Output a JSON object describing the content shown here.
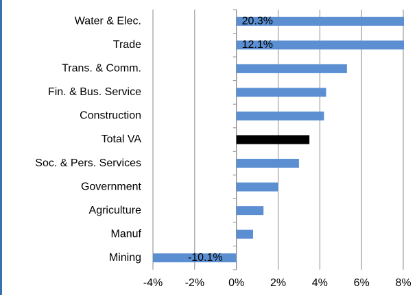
{
  "chart_data": {
    "type": "hbar",
    "categories": [
      "Water & Elec.",
      "Trade",
      "Trans. & Comm.",
      "Fin. & Bus. Service",
      "Construction",
      "Total VA",
      "Soc. & Pers. Services",
      "Government",
      "Agriculture",
      "Manuf",
      "Mining"
    ],
    "values": [
      20.3,
      12.1,
      5.3,
      4.3,
      4.2,
      3.5,
      3.0,
      2.0,
      1.3,
      0.8,
      -10.1
    ],
    "value_labels": [
      "20.3%",
      "12.1%",
      null,
      null,
      null,
      null,
      null,
      null,
      null,
      null,
      "-10.1%"
    ],
    "colors": [
      "#5b8fd1",
      "#5b8fd1",
      "#5b8fd1",
      "#5b8fd1",
      "#5b8fd1",
      "#000000",
      "#5b8fd1",
      "#5b8fd1",
      "#5b8fd1",
      "#5b8fd1",
      "#5b8fd1"
    ],
    "xlim": [
      -4,
      8
    ],
    "xticks": [
      {
        "value": -4,
        "label": "-4%"
      },
      {
        "value": -2,
        "label": "-2%"
      },
      {
        "value": 0,
        "label": "0%"
      },
      {
        "value": 2,
        "label": "2%"
      },
      {
        "value": 4,
        "label": "4%"
      },
      {
        "value": 6,
        "label": "6%"
      },
      {
        "value": 8,
        "label": "8%"
      }
    ],
    "grid": true
  }
}
